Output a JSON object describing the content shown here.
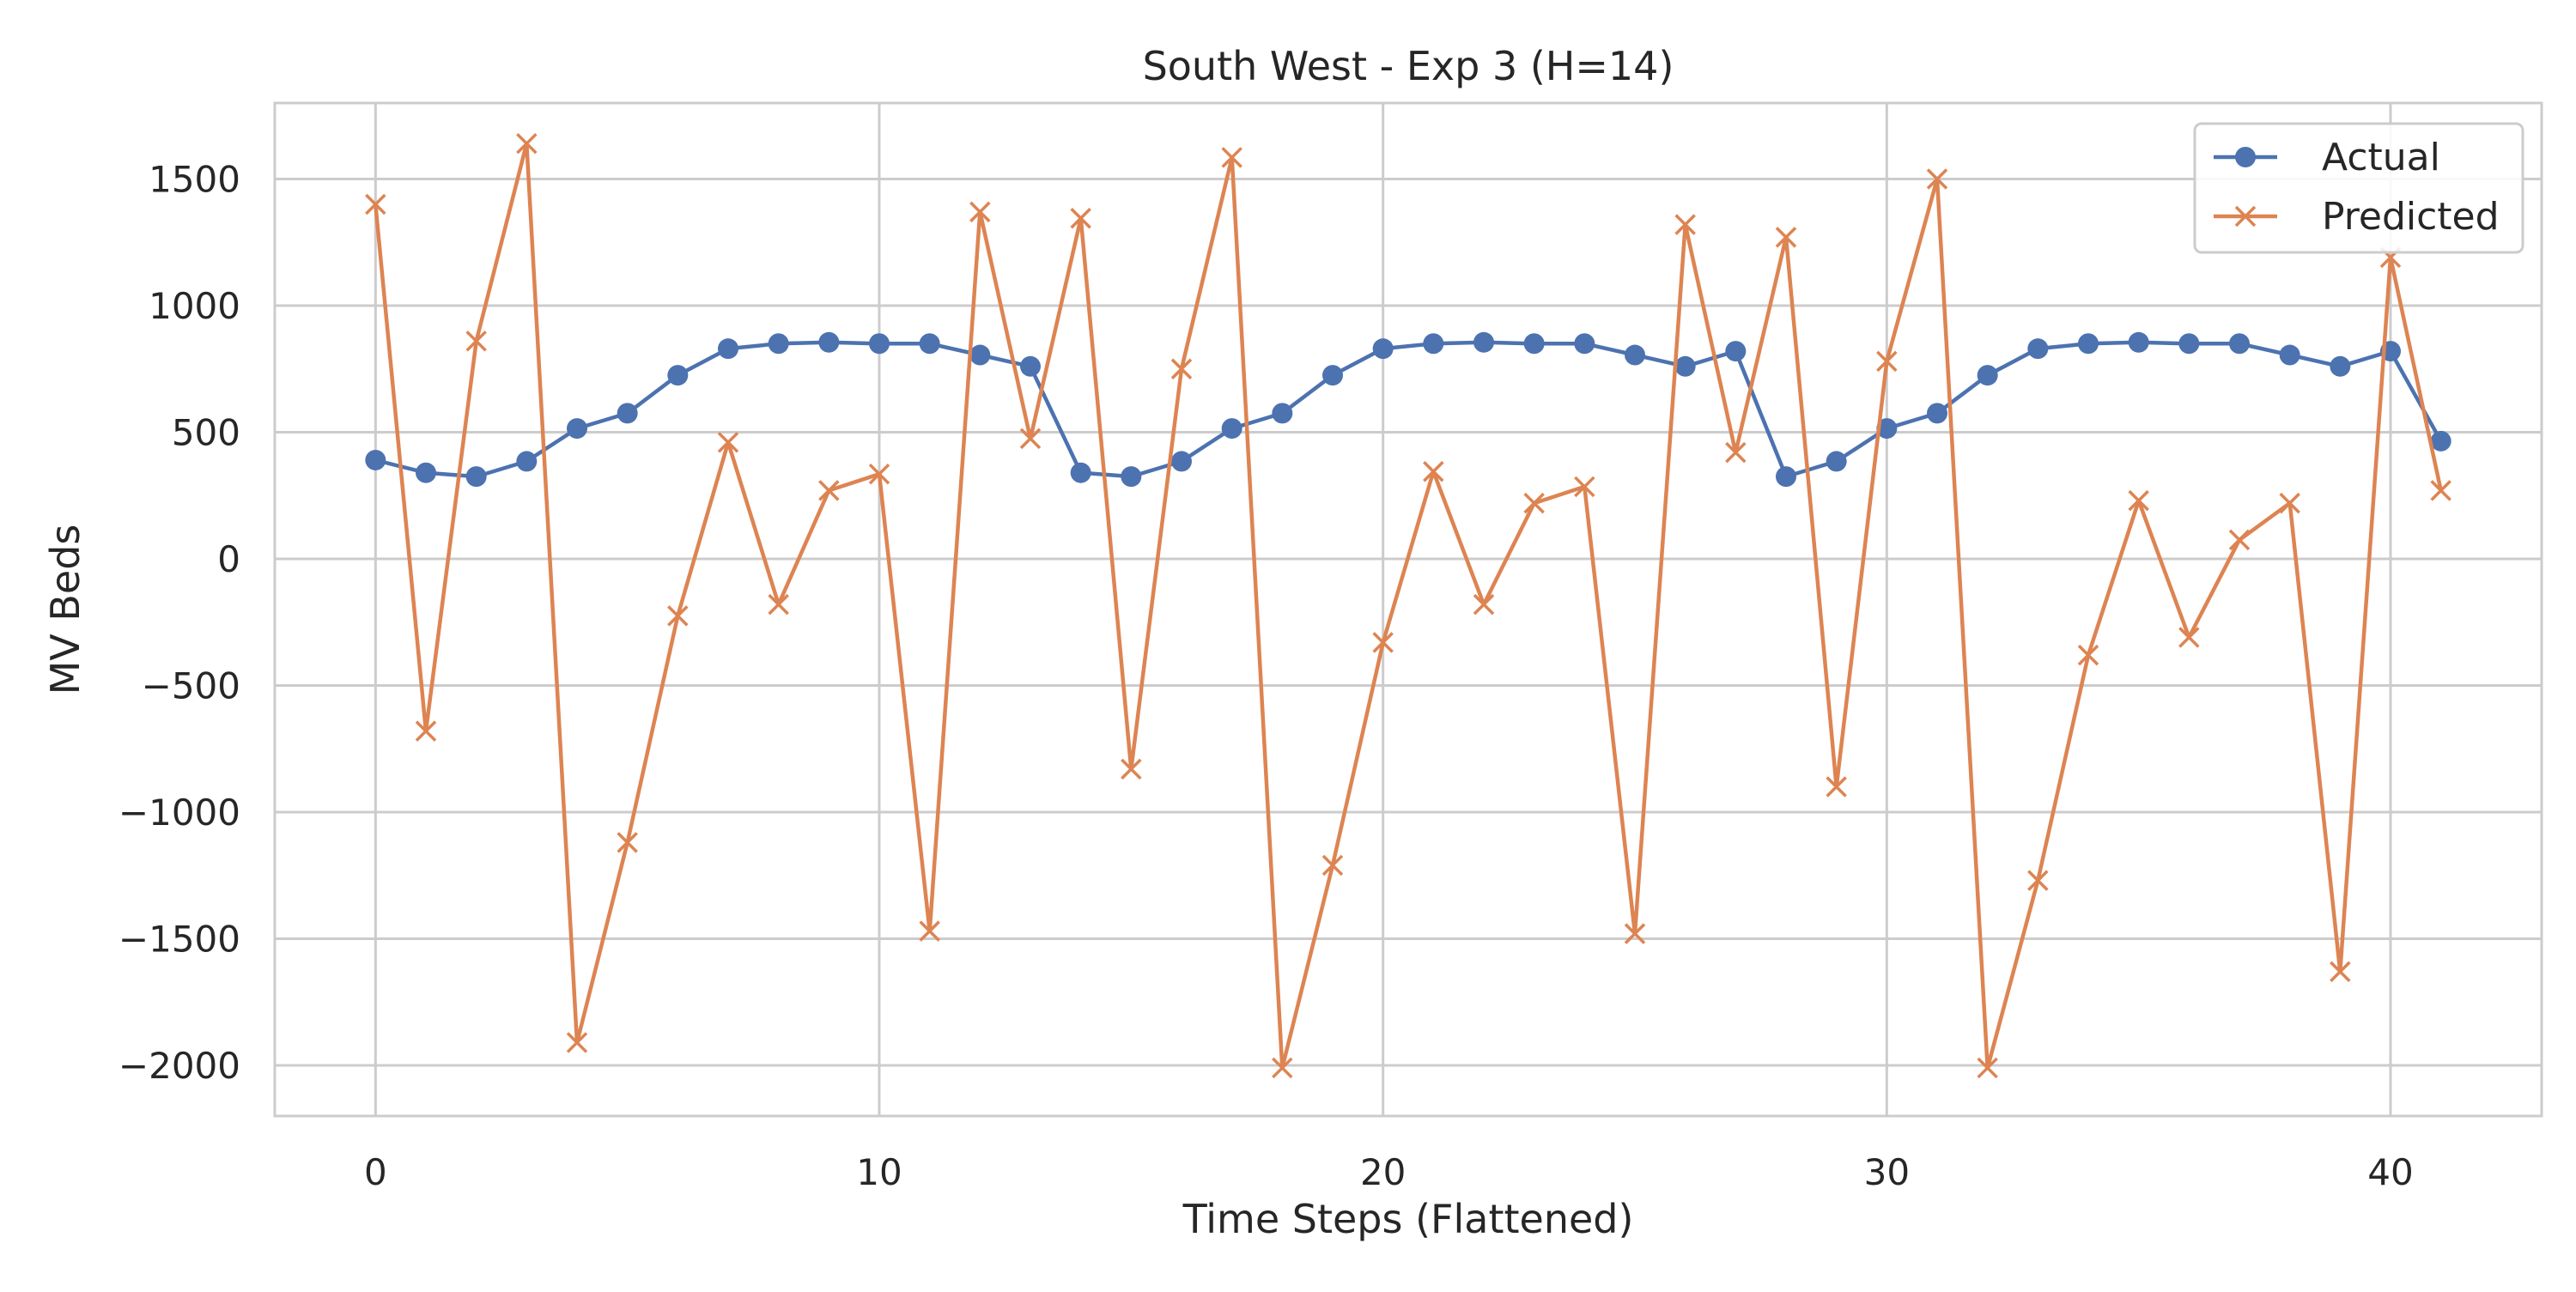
{
  "chart_data": {
    "type": "line",
    "title": "South West - Exp 3 (H=14)",
    "xlabel": "Time Steps (Flattened)",
    "ylabel": "MV Beds",
    "xlim": [
      -2,
      43
    ],
    "ylim": [
      -2200,
      1800
    ],
    "xticks": [
      0,
      10,
      20,
      30,
      40
    ],
    "yticks": [
      -2000,
      -1500,
      -1000,
      -500,
      0,
      500,
      1000,
      1500
    ],
    "xtick_labels": [
      "0",
      "10",
      "20",
      "30",
      "40"
    ],
    "ytick_labels": [
      "−2000",
      "−1500",
      "−1000",
      "−500",
      "0",
      "500",
      "1000",
      "1500"
    ],
    "grid": true,
    "legend": "top-right",
    "x": [
      0,
      1,
      2,
      3,
      4,
      5,
      6,
      7,
      8,
      9,
      10,
      11,
      12,
      13,
      14,
      15,
      16,
      17,
      18,
      19,
      20,
      21,
      22,
      23,
      24,
      25,
      26,
      27,
      28,
      29,
      30,
      31,
      32,
      33,
      34,
      35,
      36,
      37,
      38,
      39,
      40,
      41
    ],
    "series": [
      {
        "name": "Actual",
        "color": "#4c72b0",
        "marker": "circle",
        "values": [
          390,
          340,
          325,
          385,
          515,
          575,
          725,
          830,
          850,
          855,
          850,
          850,
          805,
          760,
          340,
          325,
          385,
          515,
          575,
          725,
          830,
          850,
          855,
          850,
          850,
          805,
          760,
          820,
          325,
          385,
          515,
          575,
          725,
          830,
          850,
          855,
          850,
          850,
          805,
          760,
          820,
          465
        ]
      },
      {
        "name": "Predicted",
        "color": "#dd8452",
        "marker": "x",
        "values": [
          1400,
          -680,
          860,
          1640,
          -1910,
          -1120,
          -225,
          460,
          -180,
          270,
          335,
          -1470,
          1370,
          475,
          1345,
          -830,
          750,
          1585,
          -2010,
          -1210,
          -330,
          345,
          -180,
          220,
          285,
          -1480,
          1320,
          420,
          1270,
          -900,
          780,
          1500,
          -2010,
          -1270,
          -380,
          230,
          -310,
          75,
          220,
          -1630,
          1190,
          270
        ]
      }
    ]
  }
}
